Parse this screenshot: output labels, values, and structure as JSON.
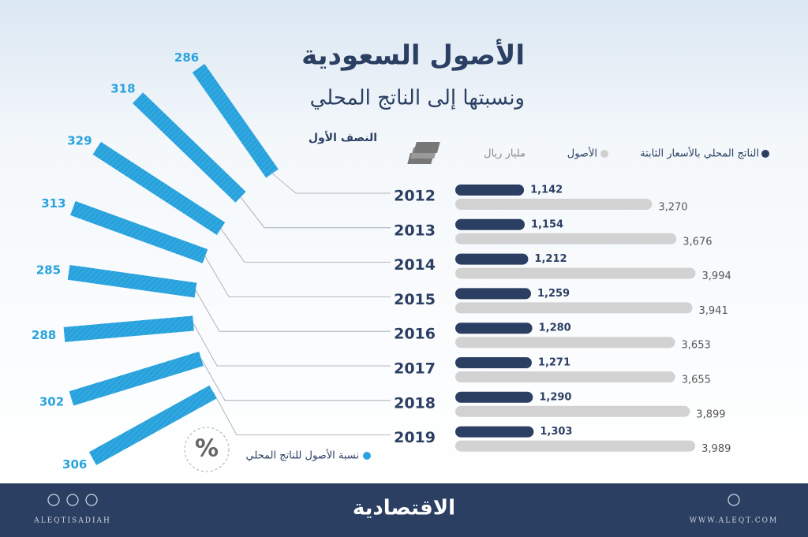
{
  "chart_data": [
    {
      "type": "hbar",
      "title": "الأصول السعودية",
      "subtitle": "ونسبتها إلى الناتج المحلي",
      "note": "النصف الأول",
      "unit": "مليار ريال",
      "categories": [
        "2012",
        "2013",
        "2014",
        "2015",
        "2016",
        "2017",
        "2018",
        "2019"
      ],
      "series": [
        {
          "name": "الناتج المحلي بالأسعار الثابتة",
          "color": "#2b3f63",
          "values": [
            1142,
            1154,
            1212,
            1259,
            1280,
            1271,
            1290,
            1303
          ],
          "value_labels": [
            "1,142",
            "1,154",
            "1,212",
            "1,259",
            "1,280",
            "1,271",
            "1,290",
            "1,303"
          ]
        },
        {
          "name": "الأصول",
          "color": "#d2d2d2",
          "values": [
            3270,
            3676,
            3994,
            3941,
            3653,
            3655,
            3899,
            3989
          ],
          "value_labels": [
            "3,270",
            "3,676",
            "3,994",
            "3,941",
            "3,653",
            "3,655",
            "3,899",
            "3,989"
          ]
        }
      ]
    },
    {
      "type": "radial-bar",
      "symbol": "%",
      "series": [
        {
          "name": "نسبة الأصول للناتج المحلي",
          "color": "#29a3df",
          "values": [
            286,
            318,
            329,
            313,
            285,
            288,
            302,
            306
          ]
        }
      ]
    }
  ],
  "footer": {
    "brand": "الاقتصادية",
    "handle": "ALEQTISADIAH",
    "site": "WWW.ALEQT.COM"
  }
}
